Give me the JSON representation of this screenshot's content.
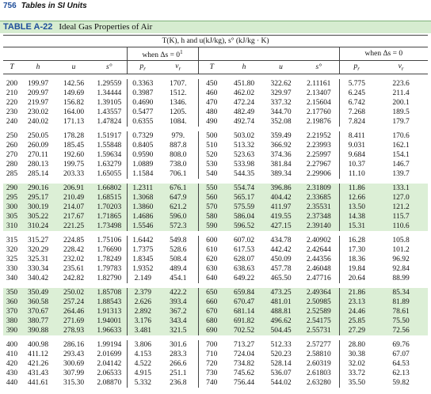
{
  "header": {
    "page_number": "756",
    "running_title": "Tables in SI Units"
  },
  "table": {
    "label": "TABLE A-22",
    "title": "Ideal Gas Properties of Air",
    "units": "T(K), h and u(kJ/kg), s° (kJ/kg · K)",
    "group_left": "when Δs = 0",
    "group_left_note": "1",
    "group_right": "when Δs = 0",
    "columns": [
      {
        "text": "T"
      },
      {
        "text": "h"
      },
      {
        "text": "u"
      },
      {
        "text": "s°"
      },
      {
        "text": "p",
        "sub": "r"
      },
      {
        "text": "v",
        "sub": "r"
      },
      {
        "text": "T"
      },
      {
        "text": "h"
      },
      {
        "text": "u"
      },
      {
        "text": "s°"
      },
      {
        "text": "p",
        "sub": "r"
      },
      {
        "text": "v",
        "sub": "r"
      }
    ],
    "groups": [
      {
        "background": "#ffffff",
        "rows": [
          [
            "200",
            "199.97",
            "142.56",
            "1.29559",
            "0.3363",
            "1707.",
            "450",
            "451.80",
            "322.62",
            "2.11161",
            "5.775",
            "223.6"
          ],
          [
            "210",
            "209.97",
            "149.69",
            "1.34444",
            "0.3987",
            "1512.",
            "460",
            "462.02",
            "329.97",
            "2.13407",
            "6.245",
            "211.4"
          ],
          [
            "220",
            "219.97",
            "156.82",
            "1.39105",
            "0.4690",
            "1346.",
            "470",
            "472.24",
            "337.32",
            "2.15604",
            "6.742",
            "200.1"
          ],
          [
            "230",
            "230.02",
            "164.00",
            "1.43557",
            "0.5477",
            "1205.",
            "480",
            "482.49",
            "344.70",
            "2.17760",
            "7.268",
            "189.5"
          ],
          [
            "240",
            "240.02",
            "171.13",
            "1.47824",
            "0.6355",
            "1084.",
            "490",
            "492.74",
            "352.08",
            "2.19876",
            "7.824",
            "179.7"
          ]
        ]
      },
      {
        "background": "#ffffff",
        "rows": [
          [
            "250",
            "250.05",
            "178.28",
            "1.51917",
            "0.7329",
            "979.",
            "500",
            "503.02",
            "359.49",
            "2.21952",
            "8.411",
            "170.6"
          ],
          [
            "260",
            "260.09",
            "185.45",
            "1.55848",
            "0.8405",
            "887.8",
            "510",
            "513.32",
            "366.92",
            "2.23993",
            "9.031",
            "162.1"
          ],
          [
            "270",
            "270.11",
            "192.60",
            "1.59634",
            "0.9590",
            "808.0",
            "520",
            "523.63",
            "374.36",
            "2.25997",
            "9.684",
            "154.1"
          ],
          [
            "280",
            "280.13",
            "199.75",
            "1.63279",
            "1.0889",
            "738.0",
            "530",
            "533.98",
            "381.84",
            "2.27967",
            "10.37",
            "146.7"
          ],
          [
            "285",
            "285.14",
            "203.33",
            "1.65055",
            "1.1584",
            "706.1",
            "540",
            "544.35",
            "389.34",
            "2.29906",
            "11.10",
            "139.7"
          ]
        ]
      },
      {
        "background": "#dcefd6",
        "rows": [
          [
            "290",
            "290.16",
            "206.91",
            "1.66802",
            "1.2311",
            "676.1",
            "550",
            "554.74",
            "396.86",
            "2.31809",
            "11.86",
            "133.1"
          ],
          [
            "295",
            "295.17",
            "210.49",
            "1.68515",
            "1.3068",
            "647.9",
            "560",
            "565.17",
            "404.42",
            "2.33685",
            "12.66",
            "127.0"
          ],
          [
            "300",
            "300.19",
            "214.07",
            "1.70203",
            "1.3860",
            "621.2",
            "570",
            "575.59",
            "411.97",
            "2.35531",
            "13.50",
            "121.2"
          ],
          [
            "305",
            "305.22",
            "217.67",
            "1.71865",
            "1.4686",
            "596.0",
            "580",
            "586.04",
            "419.55",
            "2.37348",
            "14.38",
            "115.7"
          ],
          [
            "310",
            "310.24",
            "221.25",
            "1.73498",
            "1.5546",
            "572.3",
            "590",
            "596.52",
            "427.15",
            "2.39140",
            "15.31",
            "110.6"
          ]
        ]
      },
      {
        "background": "#ffffff",
        "rows": [
          [
            "315",
            "315.27",
            "224.85",
            "1.75106",
            "1.6442",
            "549.8",
            "600",
            "607.02",
            "434.78",
            "2.40902",
            "16.28",
            "105.8"
          ],
          [
            "320",
            "320.29",
            "228.42",
            "1.76690",
            "1.7375",
            "528.6",
            "610",
            "617.53",
            "442.42",
            "2.42644",
            "17.30",
            "101.2"
          ],
          [
            "325",
            "325.31",
            "232.02",
            "1.78249",
            "1.8345",
            "508.4",
            "620",
            "628.07",
            "450.09",
            "2.44356",
            "18.36",
            "96.92"
          ],
          [
            "330",
            "330.34",
            "235.61",
            "1.79783",
            "1.9352",
            "489.4",
            "630",
            "638.63",
            "457.78",
            "2.46048",
            "19.84",
            "92.84"
          ],
          [
            "340",
            "340.42",
            "242.82",
            "1.82790",
            "2.149",
            "454.1",
            "640",
            "649.22",
            "465.50",
            "2.47716",
            "20.64",
            "88.99"
          ]
        ]
      },
      {
        "background": "#dcefd6",
        "rows": [
          [
            "350",
            "350.49",
            "250.02",
            "1.85708",
            "2.379",
            "422.2",
            "650",
            "659.84",
            "473.25",
            "2.49364",
            "21.86",
            "85.34"
          ],
          [
            "360",
            "360.58",
            "257.24",
            "1.88543",
            "2.626",
            "393.4",
            "660",
            "670.47",
            "481.01",
            "2.50985",
            "23.13",
            "81.89"
          ],
          [
            "370",
            "370.67",
            "264.46",
            "1.91313",
            "2.892",
            "367.2",
            "670",
            "681.14",
            "488.81",
            "2.52589",
            "24.46",
            "78.61"
          ],
          [
            "380",
            "380.77",
            "271.69",
            "1.94001",
            "3.176",
            "343.4",
            "680",
            "691.82",
            "496.62",
            "2.54175",
            "25.85",
            "75.50"
          ],
          [
            "390",
            "390.88",
            "278.93",
            "1.96633",
            "3.481",
            "321.5",
            "690",
            "702.52",
            "504.45",
            "2.55731",
            "27.29",
            "72.56"
          ]
        ]
      },
      {
        "background": "#ffffff",
        "rows": [
          [
            "400",
            "400.98",
            "286.16",
            "1.99194",
            "3.806",
            "301.6",
            "700",
            "713.27",
            "512.33",
            "2.57277",
            "28.80",
            "69.76"
          ],
          [
            "410",
            "411.12",
            "293.43",
            "2.01699",
            "4.153",
            "283.3",
            "710",
            "724.04",
            "520.23",
            "2.58810",
            "30.38",
            "67.07"
          ],
          [
            "420",
            "421.26",
            "300.69",
            "2.04142",
            "4.522",
            "266.6",
            "720",
            "734.82",
            "528.14",
            "2.60319",
            "32.02",
            "64.53"
          ],
          [
            "430",
            "431.43",
            "307.99",
            "2.06533",
            "4.915",
            "251.1",
            "730",
            "745.62",
            "536.07",
            "2.61803",
            "33.72",
            "62.13"
          ],
          [
            "440",
            "441.61",
            "315.30",
            "2.08870",
            "5.332",
            "236.8",
            "740",
            "756.44",
            "544.02",
            "2.63280",
            "35.50",
            "59.82"
          ]
        ]
      }
    ]
  }
}
